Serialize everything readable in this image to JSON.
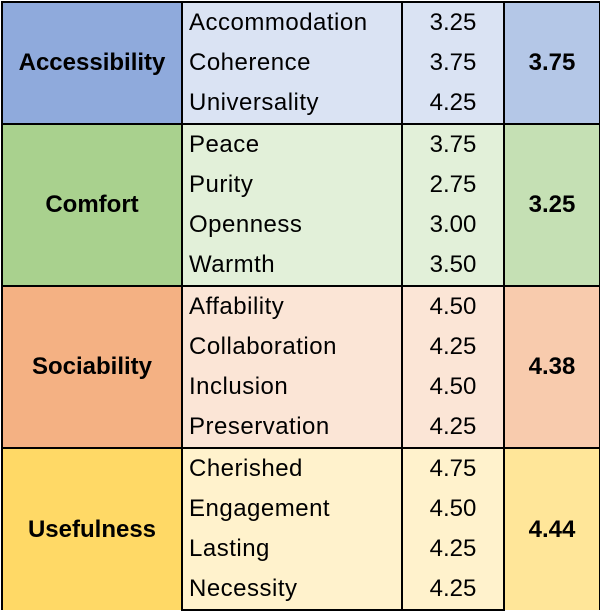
{
  "groups": [
    {
      "category": "Accessibility",
      "average": "3.75",
      "colors": {
        "category": "#8faadc",
        "item": "#dae3f3",
        "average": "#b4c7e7"
      },
      "items": [
        {
          "name": "Accommodation",
          "score": "3.25"
        },
        {
          "name": "Coherence",
          "score": "3.75"
        },
        {
          "name": "Universality",
          "score": "4.25"
        }
      ]
    },
    {
      "category": "Comfort",
      "average": "3.25",
      "colors": {
        "category": "#a9d18e",
        "item": "#e2f0d9",
        "average": "#c5e0b4"
      },
      "items": [
        {
          "name": "Peace",
          "score": "3.75"
        },
        {
          "name": "Purity",
          "score": "2.75"
        },
        {
          "name": "Openness",
          "score": "3.00"
        },
        {
          "name": "Warmth",
          "score": "3.50"
        }
      ]
    },
    {
      "category": "Sociability",
      "average": "4.38",
      "colors": {
        "category": "#f4b183",
        "item": "#fbe5d6",
        "average": "#f8cbad"
      },
      "items": [
        {
          "name": "Affability",
          "score": "4.50"
        },
        {
          "name": "Collaboration",
          "score": "4.25"
        },
        {
          "name": "Inclusion",
          "score": "4.50"
        },
        {
          "name": "Preservation",
          "score": "4.25"
        }
      ]
    },
    {
      "category": "Usefulness",
      "average": "4.44",
      "colors": {
        "category": "#ffd966",
        "item": "#fff2cc",
        "average": "#ffe699"
      },
      "items": [
        {
          "name": "Cherished",
          "score": "4.75"
        },
        {
          "name": "Engagement",
          "score": "4.50"
        },
        {
          "name": "Lasting",
          "score": "4.25"
        },
        {
          "name": "Necessity",
          "score": "4.25"
        }
      ]
    }
  ]
}
